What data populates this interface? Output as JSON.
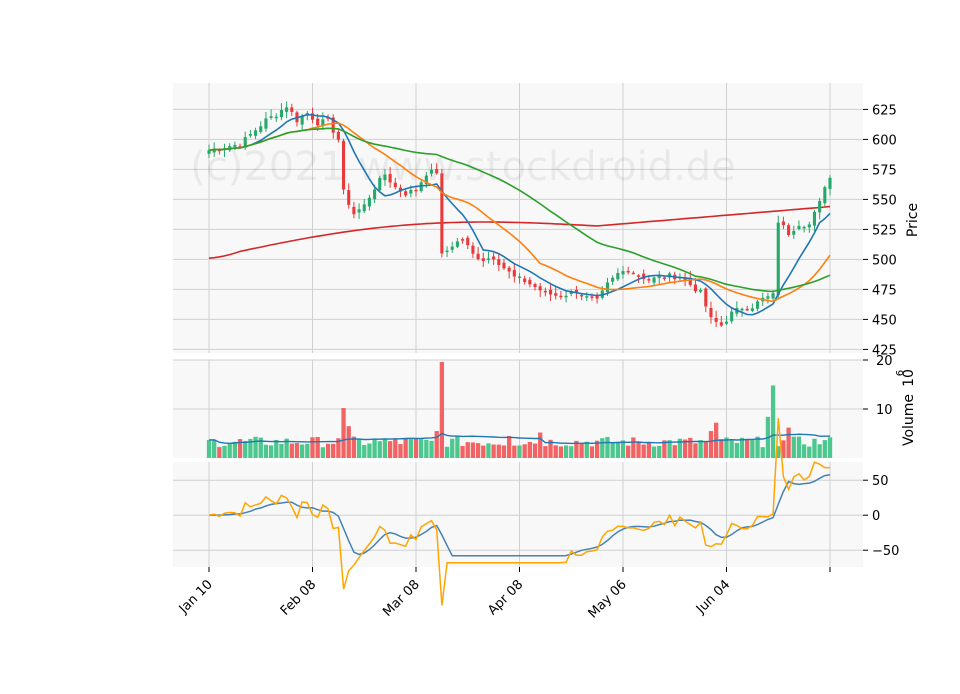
{
  "watermark": "(c)2021 www.stockdroid.de",
  "colors": {
    "up": "#26a86b",
    "down": "#e83a3a",
    "up_fill": "#4cc88f",
    "down_fill": "#f26464",
    "ma_fast": "#1f77b4",
    "ma_mid": "#ff7f0e",
    "ma_slow": "#2ca02c",
    "ma_long": "#d62728",
    "vol_ma": "#1f77b4",
    "osc_fast": "#4682b4",
    "osc_slow": "#ffa500",
    "grid": "#d0d0d0",
    "panel_bg": "#f8f8f8"
  },
  "chart_data": [
    {
      "type": "candlestick",
      "panel": "price",
      "ylabel": "Price",
      "ylim": [
        422,
        647
      ],
      "yticks": [
        425,
        450,
        475,
        500,
        525,
        550,
        575,
        600,
        625
      ],
      "xticks": [
        {
          "index": 0,
          "label": "Jan 10"
        },
        {
          "index": 20,
          "label": "Feb 08"
        },
        {
          "index": 40,
          "label": "Mar 08"
        },
        {
          "index": 60,
          "label": "Apr 08"
        },
        {
          "index": 80,
          "label": "May 06"
        },
        {
          "index": 100,
          "label": "Jun 04"
        }
      ],
      "n_periods": 120,
      "anchors": [
        [
          0,
          591
        ],
        [
          3,
          594
        ],
        [
          6,
          596
        ],
        [
          9,
          608
        ],
        [
          11,
          616
        ],
        [
          13,
          621
        ],
        [
          15,
          628
        ],
        [
          17,
          616
        ],
        [
          19,
          622
        ],
        [
          21,
          614
        ],
        [
          23,
          615
        ],
        [
          25,
          600
        ],
        [
          26,
          556
        ],
        [
          28,
          538
        ],
        [
          30,
          545
        ],
        [
          32,
          560
        ],
        [
          34,
          571
        ],
        [
          36,
          560
        ],
        [
          38,
          555
        ],
        [
          40,
          558
        ],
        [
          42,
          572
        ],
        [
          44,
          573
        ],
        [
          45,
          503
        ],
        [
          47,
          512
        ],
        [
          49,
          517
        ],
        [
          51,
          504
        ],
        [
          53,
          500
        ],
        [
          55,
          502
        ],
        [
          57,
          493
        ],
        [
          59,
          485
        ],
        [
          61,
          482
        ],
        [
          63,
          477
        ],
        [
          65,
          472
        ],
        [
          67,
          470
        ],
        [
          69,
          471
        ],
        [
          71,
          474
        ],
        [
          73,
          468
        ],
        [
          75,
          465
        ],
        [
          77,
          479
        ],
        [
          79,
          488
        ],
        [
          81,
          492
        ],
        [
          83,
          487
        ],
        [
          85,
          483
        ],
        [
          87,
          485
        ],
        [
          89,
          486
        ],
        [
          91,
          486
        ],
        [
          93,
          479
        ],
        [
          95,
          472
        ],
        [
          97,
          450
        ],
        [
          99,
          445
        ],
        [
          101,
          455
        ],
        [
          103,
          460
        ],
        [
          105,
          461
        ],
        [
          107,
          467
        ],
        [
          109,
          470
        ],
        [
          110,
          532
        ],
        [
          112,
          522
        ],
        [
          114,
          530
        ],
        [
          116,
          529
        ],
        [
          118,
          547
        ],
        [
          119,
          562
        ],
        [
          120,
          568
        ]
      ],
      "indicators": [
        {
          "key": "ma_fast",
          "period": 9
        },
        {
          "key": "ma_mid",
          "period": 20
        },
        {
          "key": "ma_slow",
          "period": 50
        },
        {
          "key": "ma_long",
          "period": 200,
          "first_value": 501,
          "last_value": 544
        }
      ]
    },
    {
      "type": "bar",
      "panel": "volume",
      "ylabel": "Volume",
      "exponent": "6",
      "ylim": [
        0,
        20
      ],
      "yticks": [
        10,
        20
      ],
      "spikes": [
        {
          "index": 26,
          "value": 10.2
        },
        {
          "index": 27,
          "value": 6.5
        },
        {
          "index": 45,
          "value": 19.6
        },
        {
          "index": 44,
          "value": 5.5
        },
        {
          "index": 98,
          "value": 7.2
        },
        {
          "index": 97,
          "value": 5.5
        },
        {
          "index": 108,
          "value": 8.4
        },
        {
          "index": 109,
          "value": 14.8
        },
        {
          "index": 112,
          "value": 6.2
        },
        {
          "index": 36,
          "value": 4.0
        },
        {
          "index": 58,
          "value": 4.5
        },
        {
          "index": 64,
          "value": 5.2
        }
      ],
      "base_volume": 2.2,
      "ma_period": 20
    },
    {
      "type": "line",
      "panel": "oscillator",
      "ylim": [
        -74,
        76
      ],
      "yticks": [
        -50,
        0,
        50
      ],
      "series": [
        {
          "key": "osc_fast",
          "smooth": 1
        },
        {
          "key": "osc_slow",
          "smooth": 0
        }
      ]
    }
  ],
  "axis": {
    "price_label": "Price",
    "volume_label": "Volume",
    "volume_exp": "6"
  }
}
